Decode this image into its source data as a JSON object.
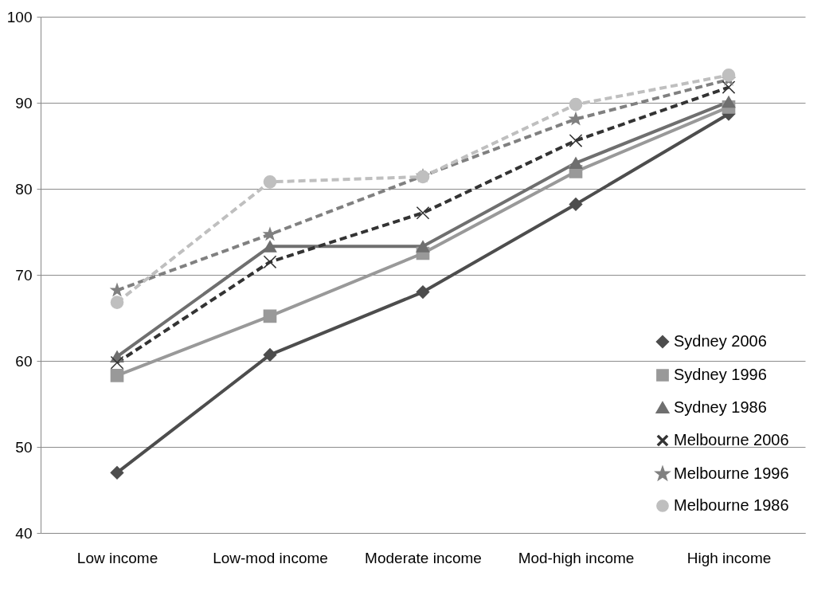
{
  "chart_data": {
    "type": "line",
    "categories": [
      "Low income",
      "Low-mod income",
      "Moderate income",
      "Mod-high income",
      "High income"
    ],
    "ylim": [
      40,
      100
    ],
    "yticks": [
      40,
      50,
      60,
      70,
      80,
      90,
      100
    ],
    "grid": "y",
    "legend": "bottom right",
    "series": [
      {
        "name": "Sydney 2006",
        "color": "#4d4d4d",
        "marker": "diamond",
        "line_style": "solid",
        "values": [
          47,
          60.7,
          68,
          78.2,
          88.7
        ]
      },
      {
        "name": "Sydney 1996",
        "color": "#999999",
        "marker": "square",
        "line_style": "solid",
        "values": [
          58.3,
          65.2,
          72.5,
          82,
          89.5
        ]
      },
      {
        "name": "Sydney 1986",
        "color": "#6f6f6f",
        "marker": "triangle",
        "line_style": "solid",
        "values": [
          60.5,
          73.3,
          73.3,
          83,
          90.1
        ]
      },
      {
        "name": "Melbourne 2006",
        "color": "#333333",
        "marker": "cross",
        "line_style": "dashed",
        "values": [
          59.8,
          71.5,
          77.2,
          85.6,
          91.8
        ]
      },
      {
        "name": "Melbourne 1996",
        "color": "#808080",
        "marker": "star",
        "line_style": "dashed",
        "values": [
          68.2,
          74.7,
          81.5,
          88.1,
          92.7
        ]
      },
      {
        "name": "Melbourne 1986",
        "color": "#bfbfbf",
        "marker": "circle",
        "line_style": "dashed",
        "values": [
          66.8,
          80.8,
          81.4,
          89.8,
          93.2
        ]
      }
    ]
  }
}
